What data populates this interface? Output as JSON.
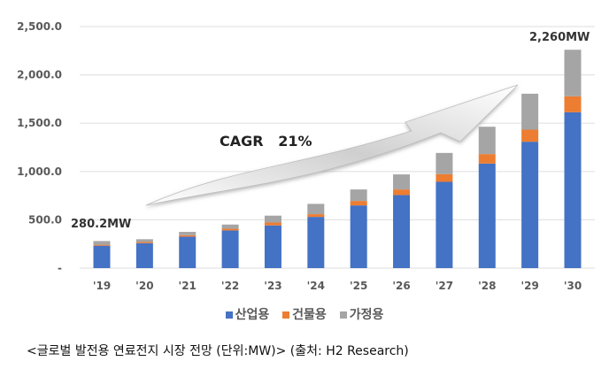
{
  "chart_data": {
    "type": "bar",
    "stacked": true,
    "title": "",
    "xlabel": "",
    "ylabel": "",
    "ylim": [
      0,
      2500
    ],
    "yticks": [
      0,
      500,
      1000,
      1500,
      2000,
      2500
    ],
    "ytick_labels": [
      "-",
      "500.0",
      "1,000.0",
      "1,500.0",
      "2,000.0",
      "2,500.0"
    ],
    "grid": true,
    "legend_placement": "bottom",
    "categories": [
      "'19",
      "'20",
      "'21",
      "'22",
      "'23",
      "'24",
      "'25",
      "'26",
      "'27",
      "'28",
      "'29",
      "'30"
    ],
    "series": [
      {
        "name": "산업용",
        "color": "#4472C4",
        "values": [
          232,
          258,
          326,
          390,
          442,
          530,
          649,
          756,
          893,
          1082,
          1308,
          1613
        ]
      },
      {
        "name": "건물용",
        "color": "#ED7D31",
        "values": [
          10,
          12,
          15,
          18,
          30,
          28,
          46,
          58,
          79,
          98,
          125,
          165
        ]
      },
      {
        "name": "가정용",
        "color": "#A5A5A5",
        "values": [
          38.2,
          29,
          34,
          43,
          71,
          107,
          119,
          156,
          220,
          283,
          372,
          482
        ]
      }
    ],
    "annotations": {
      "first_total": "280.2MW",
      "last_total": "2,260MW",
      "cagr": "CAGR   21%"
    }
  },
  "caption": "<글로벌 발전용 연료전지 시장 전망 (단위:MW)> (출처: H2 Research)"
}
